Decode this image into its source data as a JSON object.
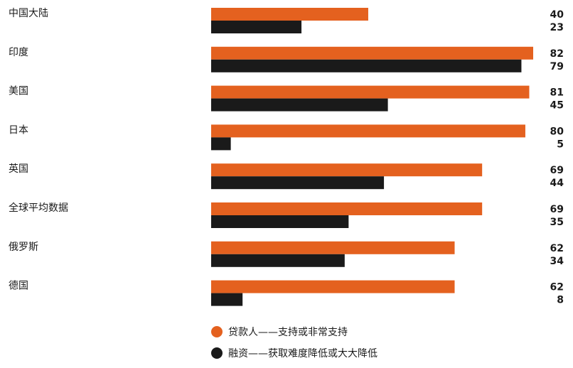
{
  "colors": {
    "lender": "#e4611f",
    "finance": "#1a1a1a"
  },
  "chart_data": {
    "type": "bar",
    "orientation": "horizontal",
    "categories": [
      "中国大陆",
      "印度",
      "美国",
      "日本",
      "英国",
      "全球平均数据",
      "俄罗斯",
      "德国"
    ],
    "series": [
      {
        "name": "贷款人——支持或非常支持",
        "color": "#e4611f",
        "values": [
          40,
          82,
          81,
          80,
          69,
          69,
          62,
          62
        ]
      },
      {
        "name": "融资——获取难度降低或大大降低",
        "color": "#1a1a1a",
        "values": [
          23,
          79,
          45,
          5,
          44,
          35,
          34,
          8
        ]
      }
    ],
    "xlim": [
      0,
      82
    ],
    "grid": false,
    "legend_position": "bottom"
  }
}
